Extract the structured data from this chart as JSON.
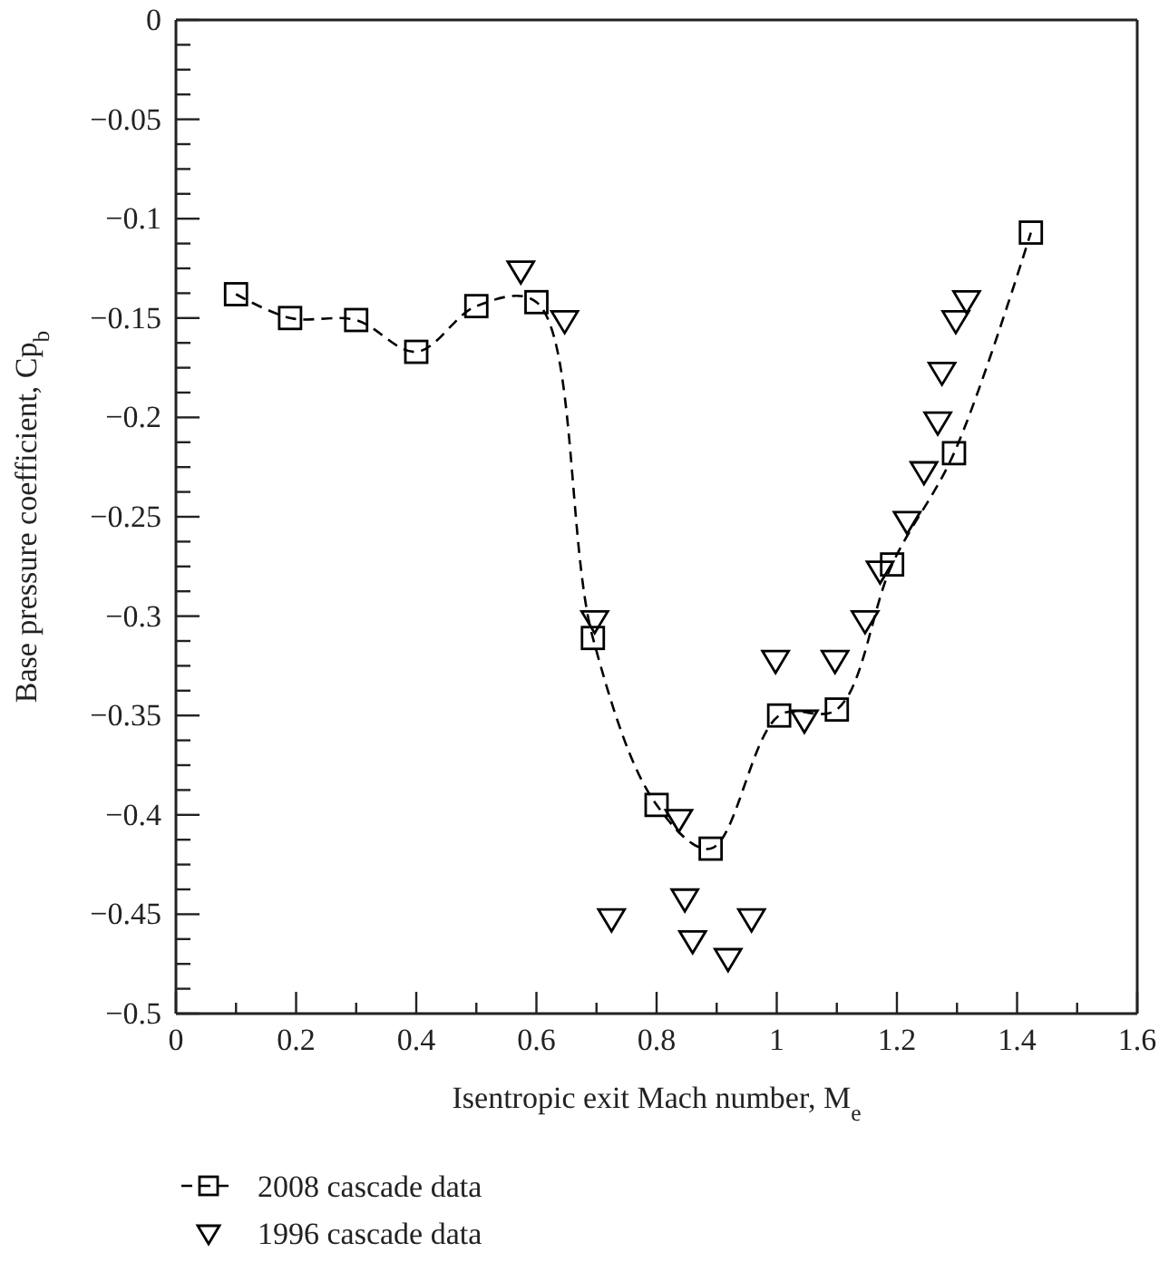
{
  "chart_data": {
    "type": "scatter",
    "xlabel": "Isentropic exit Mach number, M$_{e}$",
    "ylabel": "Base pressure coefficient, Cp$_{b}$",
    "xlim": [
      0,
      1.6
    ],
    "ylim": [
      -0.5,
      0
    ],
    "xticks": [
      0,
      {
        "value": 0.1,
        "label": null
      },
      0.2,
      {
        "value": 0.3,
        "label": null
      },
      0.4,
      {
        "value": 0.5,
        "label": null
      },
      0.6,
      {
        "value": 0.7,
        "label": null
      },
      0.8,
      {
        "value": 0.9,
        "label": null
      },
      1,
      {
        "value": 1.1,
        "label": null
      },
      1.2,
      {
        "value": 1.3,
        "label": null
      },
      1.4,
      {
        "value": 1.5,
        "label": null
      },
      1.6
    ],
    "yticks": [
      0,
      {
        "value": -0.0125,
        "label": null
      },
      {
        "value": -0.025,
        "label": null
      },
      {
        "value": -0.0375,
        "label": null
      },
      -0.05,
      {
        "value": -0.0625,
        "label": null
      },
      {
        "value": -0.075,
        "label": null
      },
      {
        "value": -0.0875,
        "label": null
      },
      -0.1,
      {
        "value": -0.1125,
        "label": null
      },
      {
        "value": -0.125,
        "label": null
      },
      {
        "value": -0.1375,
        "label": null
      },
      -0.15,
      {
        "value": -0.1625,
        "label": null
      },
      {
        "value": -0.175,
        "label": null
      },
      {
        "value": -0.1875,
        "label": null
      },
      -0.2,
      {
        "value": -0.2125,
        "label": null
      },
      {
        "value": -0.225,
        "label": null
      },
      {
        "value": -0.2375,
        "label": null
      },
      -0.25,
      {
        "value": -0.2625,
        "label": null
      },
      {
        "value": -0.275,
        "label": null
      },
      {
        "value": -0.2875,
        "label": null
      },
      -0.3,
      {
        "value": -0.3125,
        "label": null
      },
      {
        "value": -0.325,
        "label": null
      },
      {
        "value": -0.3375,
        "label": null
      },
      -0.35,
      {
        "value": -0.3625,
        "label": null
      },
      {
        "value": -0.375,
        "label": null
      },
      {
        "value": -0.3875,
        "label": null
      },
      -0.4,
      {
        "value": -0.4125,
        "label": null
      },
      {
        "value": -0.425,
        "label": null
      },
      {
        "value": -0.4375,
        "label": null
      },
      -0.45,
      {
        "value": -0.4625,
        "label": null
      },
      {
        "value": -0.475,
        "label": null
      },
      {
        "value": -0.4875,
        "label": null
      },
      -0.5
    ],
    "grid": false,
    "legend": "bottom",
    "series": [
      {
        "name": "2008 cascade data",
        "type": "line",
        "marker": "square",
        "line_style": "dashed",
        "color": "#000000",
        "x": [
          0.1,
          0.19,
          0.3,
          0.4,
          0.5,
          0.6,
          0.694,
          0.8,
          0.89,
          1.004,
          1.1,
          1.192,
          1.295,
          1.423
        ],
        "values": [
          -0.138,
          -0.15,
          -0.151,
          -0.167,
          -0.144,
          -0.142,
          -0.311,
          -0.395,
          -0.417,
          -0.35,
          -0.347,
          -0.274,
          -0.218,
          -0.107
        ]
      },
      {
        "name": "1996 cascade data",
        "type": "scatter",
        "marker": "triangle",
        "color": "#000000",
        "x": [
          0.574,
          0.647,
          0.697,
          0.725,
          0.837,
          0.847,
          0.86,
          0.919,
          0.958,
          0.998,
          1.046,
          1.097,
          1.147,
          1.172,
          1.217,
          1.245,
          1.268,
          1.275,
          1.298,
          1.316
        ],
        "values": [
          -0.126,
          -0.151,
          -0.302,
          -0.452,
          -0.402,
          -0.442,
          -0.463,
          -0.472,
          -0.452,
          -0.322,
          -0.352,
          -0.322,
          -0.302,
          -0.277,
          -0.252,
          -0.227,
          -0.202,
          -0.177,
          -0.151,
          -0.141
        ]
      }
    ]
  }
}
